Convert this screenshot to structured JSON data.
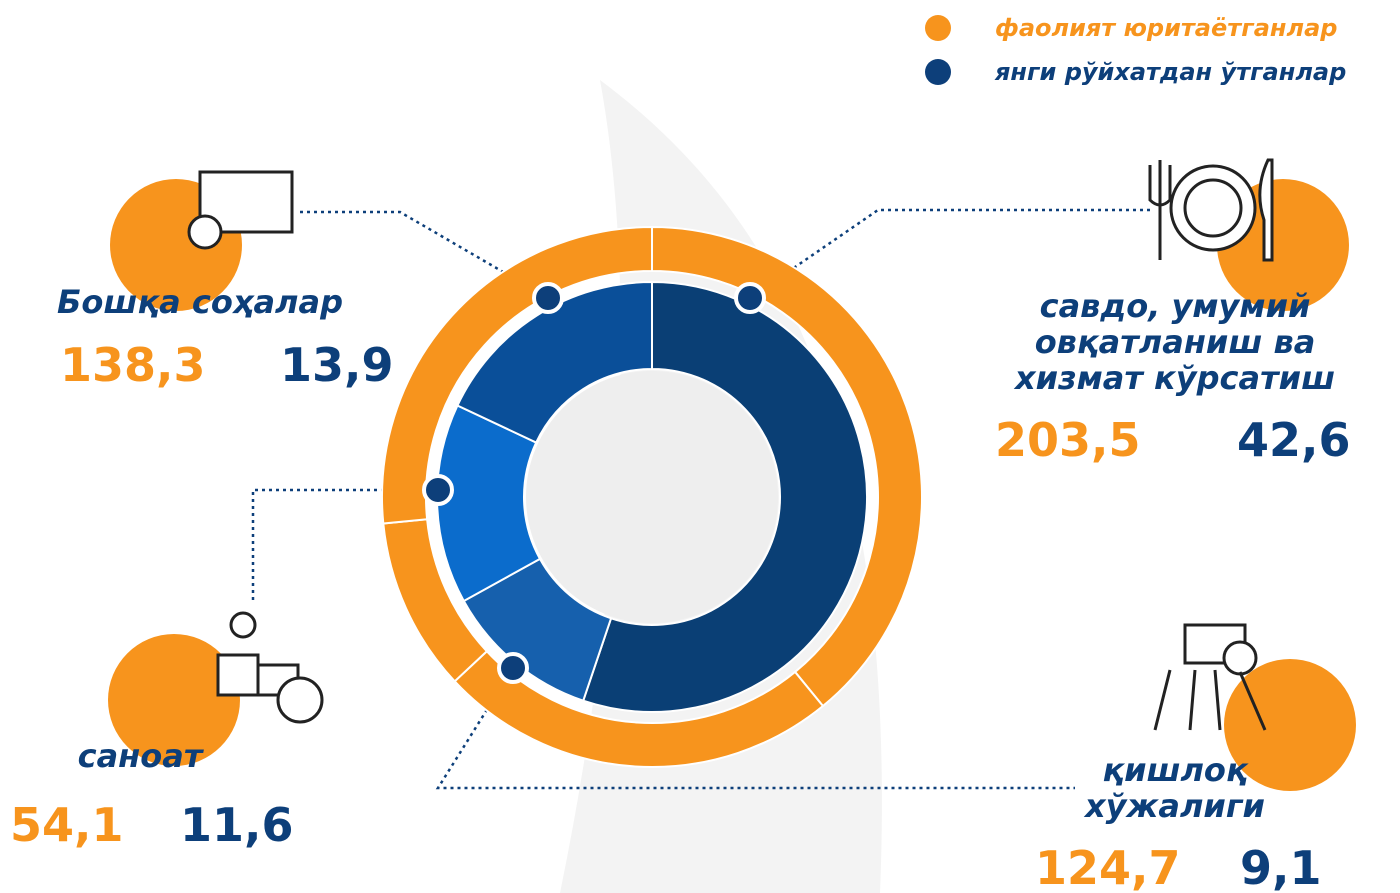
{
  "chart_data": {
    "type": "donut",
    "categories": [
      "савдо, умумий овқатланиш ва хизмат кўрсатиш",
      "қишлоқ хўжалиги",
      "саноат",
      "Бошқа соҳалар"
    ],
    "series": [
      {
        "name": "фаолият юритаётганлар",
        "color": "#f7941d",
        "values": [
          203.5,
          124.7,
          54.1,
          138.3
        ],
        "value_labels": [
          "203,5",
          "124,7",
          "54,1",
          "138,3"
        ]
      },
      {
        "name": "янги рўйхатдан ўтганлар",
        "color": "#0d3f7a",
        "values": [
          42.6,
          9.1,
          11.6,
          13.9
        ],
        "value_labels": [
          "42,6",
          "9,1",
          "11,6",
          "13,9"
        ],
        "segment_colors": [
          "#0a3f75",
          "#1660ad",
          "#0b6ccc",
          "#0a4f99"
        ]
      }
    ]
  }
}
